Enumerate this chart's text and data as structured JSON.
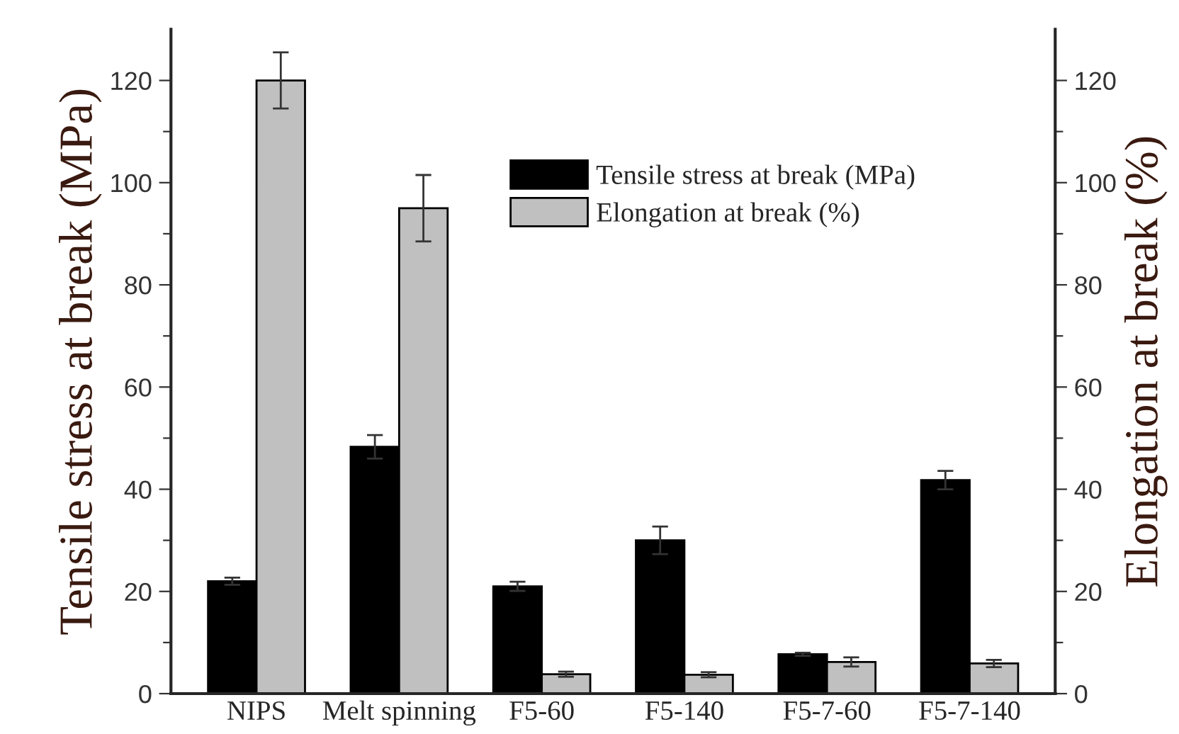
{
  "chart_data": {
    "type": "bar",
    "categories": [
      "NIPS",
      "Melt spinning",
      "F5-60",
      "F5-140",
      "F5-7-60",
      "F5-7-140"
    ],
    "ylabel": "Tensile stress at break (MPa)",
    "y2label": "Elongation at break (%)",
    "series": [
      {
        "name": "Tensile stress at break (MPa)",
        "color": "#000000",
        "values": [
          22,
          48.3,
          21,
          30,
          7.7,
          41.8
        ],
        "errors": [
          0.7,
          2.3,
          0.9,
          2.7,
          0.3,
          1.8
        ]
      },
      {
        "name": "Elongation at break (%)",
        "color": "#c0c0c0",
        "axis": "y2",
        "values": [
          120,
          95,
          3.8,
          3.7,
          6.2,
          5.9
        ],
        "errors": [
          5.5,
          6.5,
          0.5,
          0.5,
          0.9,
          0.7
        ]
      }
    ],
    "ylim": [
      0,
      130
    ],
    "yticks": [
      0,
      {
        "value": 10,
        "label": null
      },
      20,
      {
        "value": 30,
        "label": null
      },
      40,
      {
        "value": 50,
        "label": null
      },
      60,
      {
        "value": 70,
        "label": null
      },
      80,
      {
        "value": 90,
        "label": null
      },
      100,
      {
        "value": 110,
        "label": null
      },
      120
    ],
    "y2lim": [
      0,
      130
    ],
    "y2ticks": [
      0,
      {
        "value": 10,
        "label": null
      },
      20,
      {
        "value": 30,
        "label": null
      },
      40,
      {
        "value": 50,
        "label": null
      },
      60,
      {
        "value": 70,
        "label": null
      },
      80,
      {
        "value": 90,
        "label": null
      },
      100,
      {
        "value": 110,
        "label": null
      },
      120
    ],
    "legend": "top right",
    "grid": false
  }
}
